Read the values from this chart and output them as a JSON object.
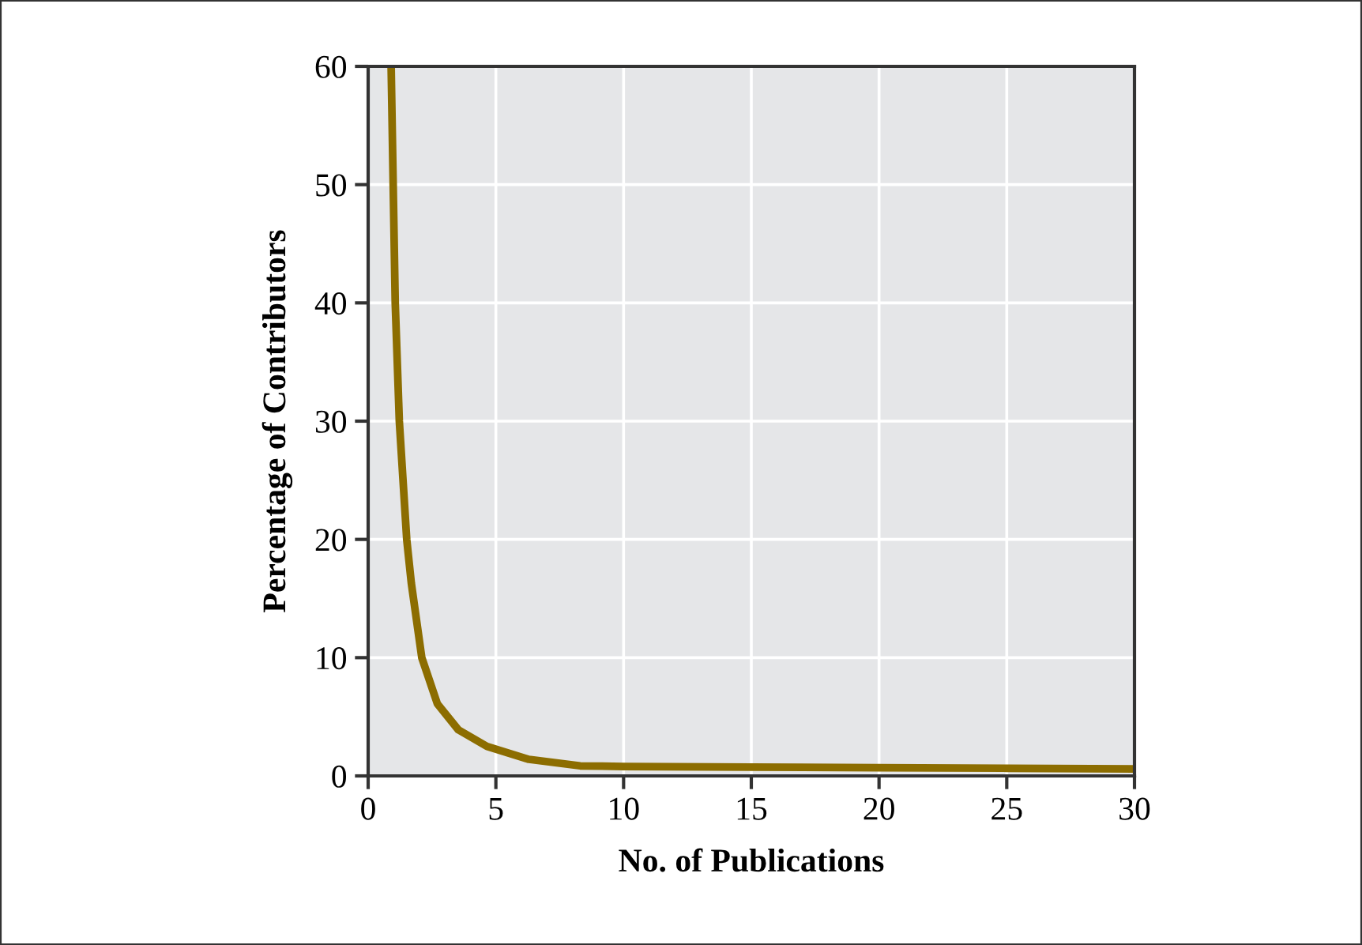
{
  "chart_data": {
    "type": "line",
    "xlabel": "No. of Publications",
    "ylabel": "Percentage of Contributors",
    "x": [
      0.9,
      0.98,
      1.06,
      1.22,
      1.51,
      1.69,
      2.1,
      2.71,
      3.53,
      4.65,
      6.29,
      8.3,
      10,
      15,
      20,
      25,
      30
    ],
    "series": [
      {
        "color": "#8c6d00",
        "values": [
          60,
          50,
          40,
          30,
          20,
          16.3,
          10,
          6.1,
          3.9,
          2.5,
          1.4,
          0.85,
          0.8,
          0.75,
          0.7,
          0.65,
          0.6
        ]
      }
    ],
    "xlim": [
      0,
      30
    ],
    "ylim": [
      0,
      60
    ],
    "xticks": [
      0,
      5,
      10,
      15,
      20,
      25,
      30
    ],
    "yticks": [
      0,
      10,
      20,
      30,
      40,
      50,
      60
    ],
    "grid": true,
    "marker": "none",
    "line_style": "solid"
  }
}
